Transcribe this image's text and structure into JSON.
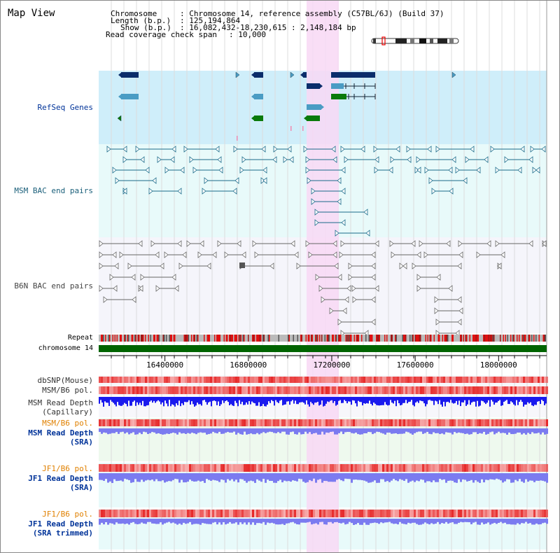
{
  "header": {
    "title": "Map View"
  },
  "info": {
    "chromosome_key": "Chromosome",
    "chromosome_value": ": Chromosome 14, reference assembly (C57BL/6J) (Build 37)",
    "length_key": "Length (b.p.)",
    "length_value": ": 125,194,864",
    "show_key": "Show (b.p.)",
    "show_value": ": 16,082,432-18,230,615 : 2,148,184 bp",
    "span_key": "Read coverage check span",
    "span_value": ": 10,000"
  },
  "tracks": {
    "refseq": "RefSeq Genes",
    "msm_bac": "MSM BAC end pairs",
    "b6n_bac": "B6N BAC end pairs",
    "repeat": "Repeat",
    "chromosome": "chromosome 14",
    "dbsnp": "dbSNP(Mouse)",
    "msm_b6_pol1": "MSM/B6 pol.",
    "msm_depth_cap_1": "MSM Read Depth",
    "msm_depth_cap_2": "(Capillary)",
    "msm_b6_pol2": "MSM/B6 pol.",
    "msm_depth_sra_1": "MSM Read Depth",
    "msm_depth_sra_2": "(SRA)",
    "jf1_b6_pol1": "JF1/B6 pol.",
    "jf1_depth_sra_1": "JF1 Read Depth",
    "jf1_depth_sra_2": "(SRA)",
    "jf1_b6_pol2": "JF1/B6 pol.",
    "jf1_depth_trim_1": "JF1 Read Depth",
    "jf1_depth_trim_2": "(SRA trimmed)"
  },
  "axis": {
    "range": [
      16082432,
      18230615
    ],
    "ticks": [
      "16400000",
      "16800000",
      "17200000",
      "17600000",
      "18000000"
    ]
  },
  "colors": {
    "refseq_bg": "#cfeefa",
    "msm_bg": "#e8fafa",
    "highlight": "#f8d8f4",
    "chromosome": "#006400",
    "gene_dark": "#0b2d6b",
    "gene_mid": "#4a9cc4",
    "gene_green": "#0a7a0a",
    "msm_bac": "#1a6b8a",
    "b6n_bac": "#666666",
    "depth_dark": "#1a1aee",
    "depth_light": "#7b7bf0",
    "msm_label": "#003399",
    "orange_label": "#e08000",
    "dark_label": "#333333"
  }
}
